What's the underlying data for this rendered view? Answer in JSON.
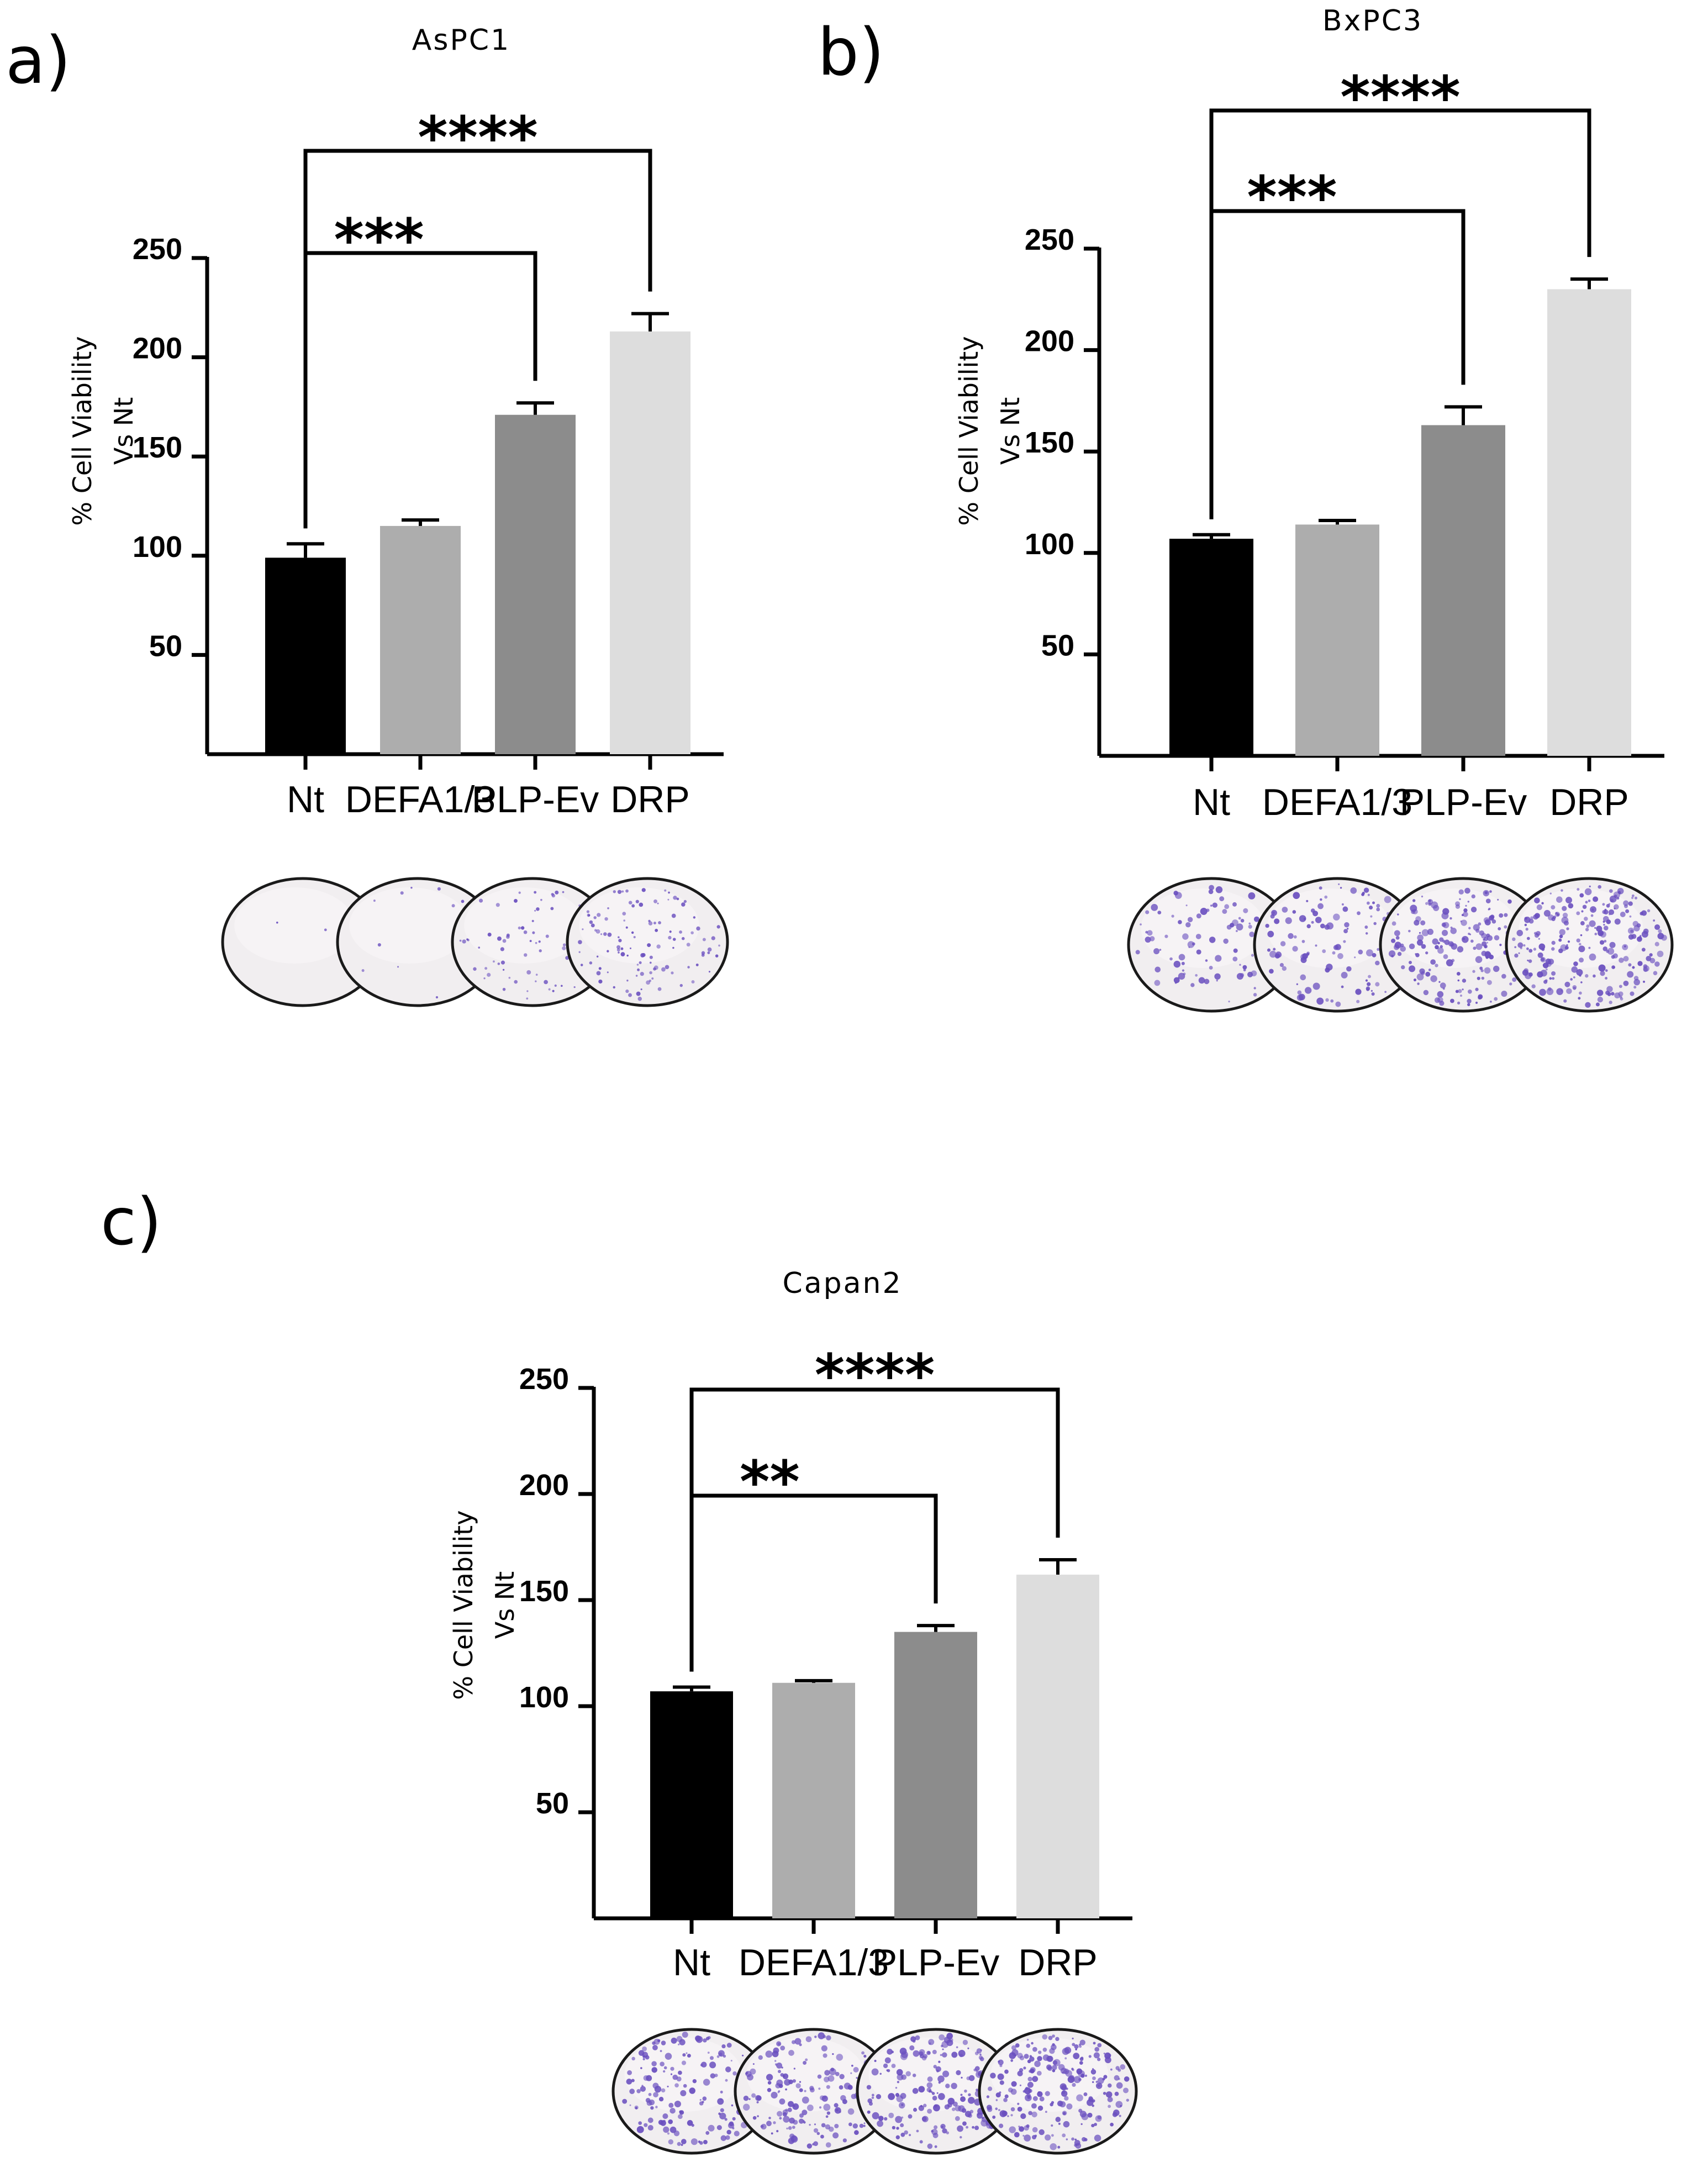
{
  "figure": {
    "panels": [
      "a)",
      "b)",
      "c)"
    ]
  },
  "colors": {
    "bar_fills": [
      "#000000",
      "#adadad",
      "#8c8c8c",
      "#dddddd"
    ],
    "axis": "#000000",
    "plate_rim": "#1a1a1a",
    "plate_background": "#f1eef0",
    "colony_color": "#6a4fbf"
  },
  "chart_data": [
    {
      "panel": "a)",
      "type": "bar",
      "title": "AsPC1",
      "ylabel_lines": [
        "% Cell Viability",
        "Vs Nt"
      ],
      "xlabel": "",
      "categories": [
        "Nt",
        "DEFA1/3",
        "PLP-Ev",
        "DRP"
      ],
      "values": [
        99,
        115,
        171,
        213
      ],
      "errors": [
        7,
        3,
        6,
        9
      ],
      "ylim": [
        0,
        250
      ],
      "yticks": [
        50,
        100,
        150,
        200,
        250
      ],
      "grid": false,
      "legend": "none",
      "significance": [
        {
          "from": "Nt",
          "to": "PLP-Ev",
          "label": "***"
        },
        {
          "from": "Nt",
          "to": "DRP",
          "label": "****"
        }
      ],
      "colony_plates": [
        "Nt",
        "DEFA1/3",
        "PLP-Ev",
        "DRP"
      ],
      "colony_density": [
        3,
        12,
        75,
        115
      ]
    },
    {
      "panel": "b)",
      "type": "bar",
      "title": "BxPC3",
      "ylabel_lines": [
        "% Cell Viability",
        "Vs Nt"
      ],
      "xlabel": "",
      "categories": [
        "Nt",
        "DEFA1/3",
        "PLP-Ev",
        "DRP"
      ],
      "values": [
        107,
        114,
        163,
        230
      ],
      "errors": [
        2,
        2,
        9,
        5
      ],
      "ylim": [
        0,
        250
      ],
      "yticks": [
        50,
        100,
        150,
        200,
        250
      ],
      "grid": false,
      "legend": "none",
      "significance": [
        {
          "from": "Nt",
          "to": "PLP-Ev",
          "label": "***"
        },
        {
          "from": "Nt",
          "to": "DRP",
          "label": "****"
        }
      ],
      "colony_plates": [
        "Nt",
        "DEFA1/3",
        "PLP-Ev",
        "DRP"
      ],
      "colony_density": [
        100,
        120,
        200,
        240
      ]
    },
    {
      "panel": "c)",
      "type": "bar",
      "title": "Capan2",
      "ylabel_lines": [
        "% Cell Viability",
        "Vs Nt"
      ],
      "xlabel": "",
      "categories": [
        "Nt",
        "DEFA1/3",
        "PLP-Ev",
        "DRP"
      ],
      "values": [
        107,
        111,
        135,
        162
      ],
      "errors": [
        2,
        1,
        3,
        7
      ],
      "ylim": [
        0,
        250
      ],
      "yticks": [
        50,
        100,
        150,
        200,
        250
      ],
      "grid": false,
      "legend": "none",
      "significance": [
        {
          "from": "Nt",
          "to": "PLP-Ev",
          "label": "**"
        },
        {
          "from": "Nt",
          "to": "DRP",
          "label": "****"
        }
      ],
      "colony_plates": [
        "Nt",
        "DEFA1/3",
        "PLP-Ev",
        "DRP"
      ],
      "colony_density": [
        160,
        170,
        190,
        230
      ]
    }
  ]
}
